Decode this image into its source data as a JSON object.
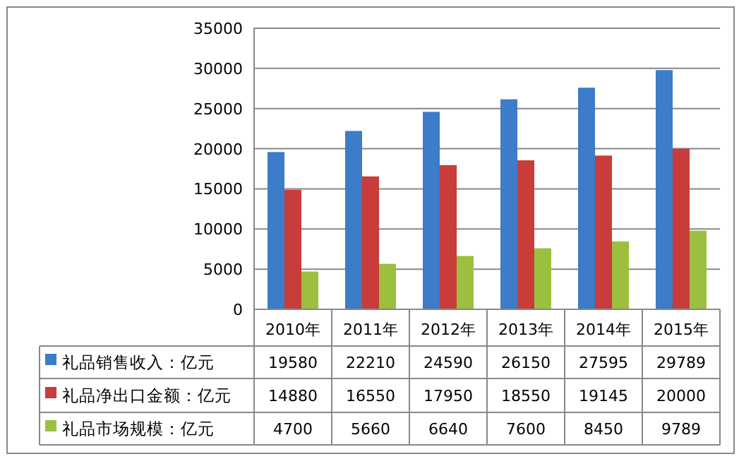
{
  "chart_data": {
    "type": "bar",
    "categories": [
      "2010年",
      "2011年",
      "2012年",
      "2013年",
      "2014年",
      "2015年"
    ],
    "series": [
      {
        "name": "礼品销售收入：亿元",
        "color": "#3c7cc8",
        "values": [
          19580,
          22210,
          24590,
          26150,
          27595,
          29789
        ]
      },
      {
        "name": "礼品净出口金额：亿元",
        "color": "#c83c3a",
        "values": [
          14880,
          16550,
          17950,
          18550,
          19145,
          20000
        ]
      },
      {
        "name": "礼品市场规模：亿元",
        "color": "#9bc040",
        "values": [
          4700,
          5660,
          6640,
          7600,
          8450,
          9789
        ]
      }
    ],
    "ylim": [
      0,
      35000
    ],
    "yticks": [
      0,
      5000,
      10000,
      15000,
      20000,
      25000,
      30000,
      35000
    ],
    "grid": "y",
    "legend": "bottom",
    "data_labels": true
  }
}
